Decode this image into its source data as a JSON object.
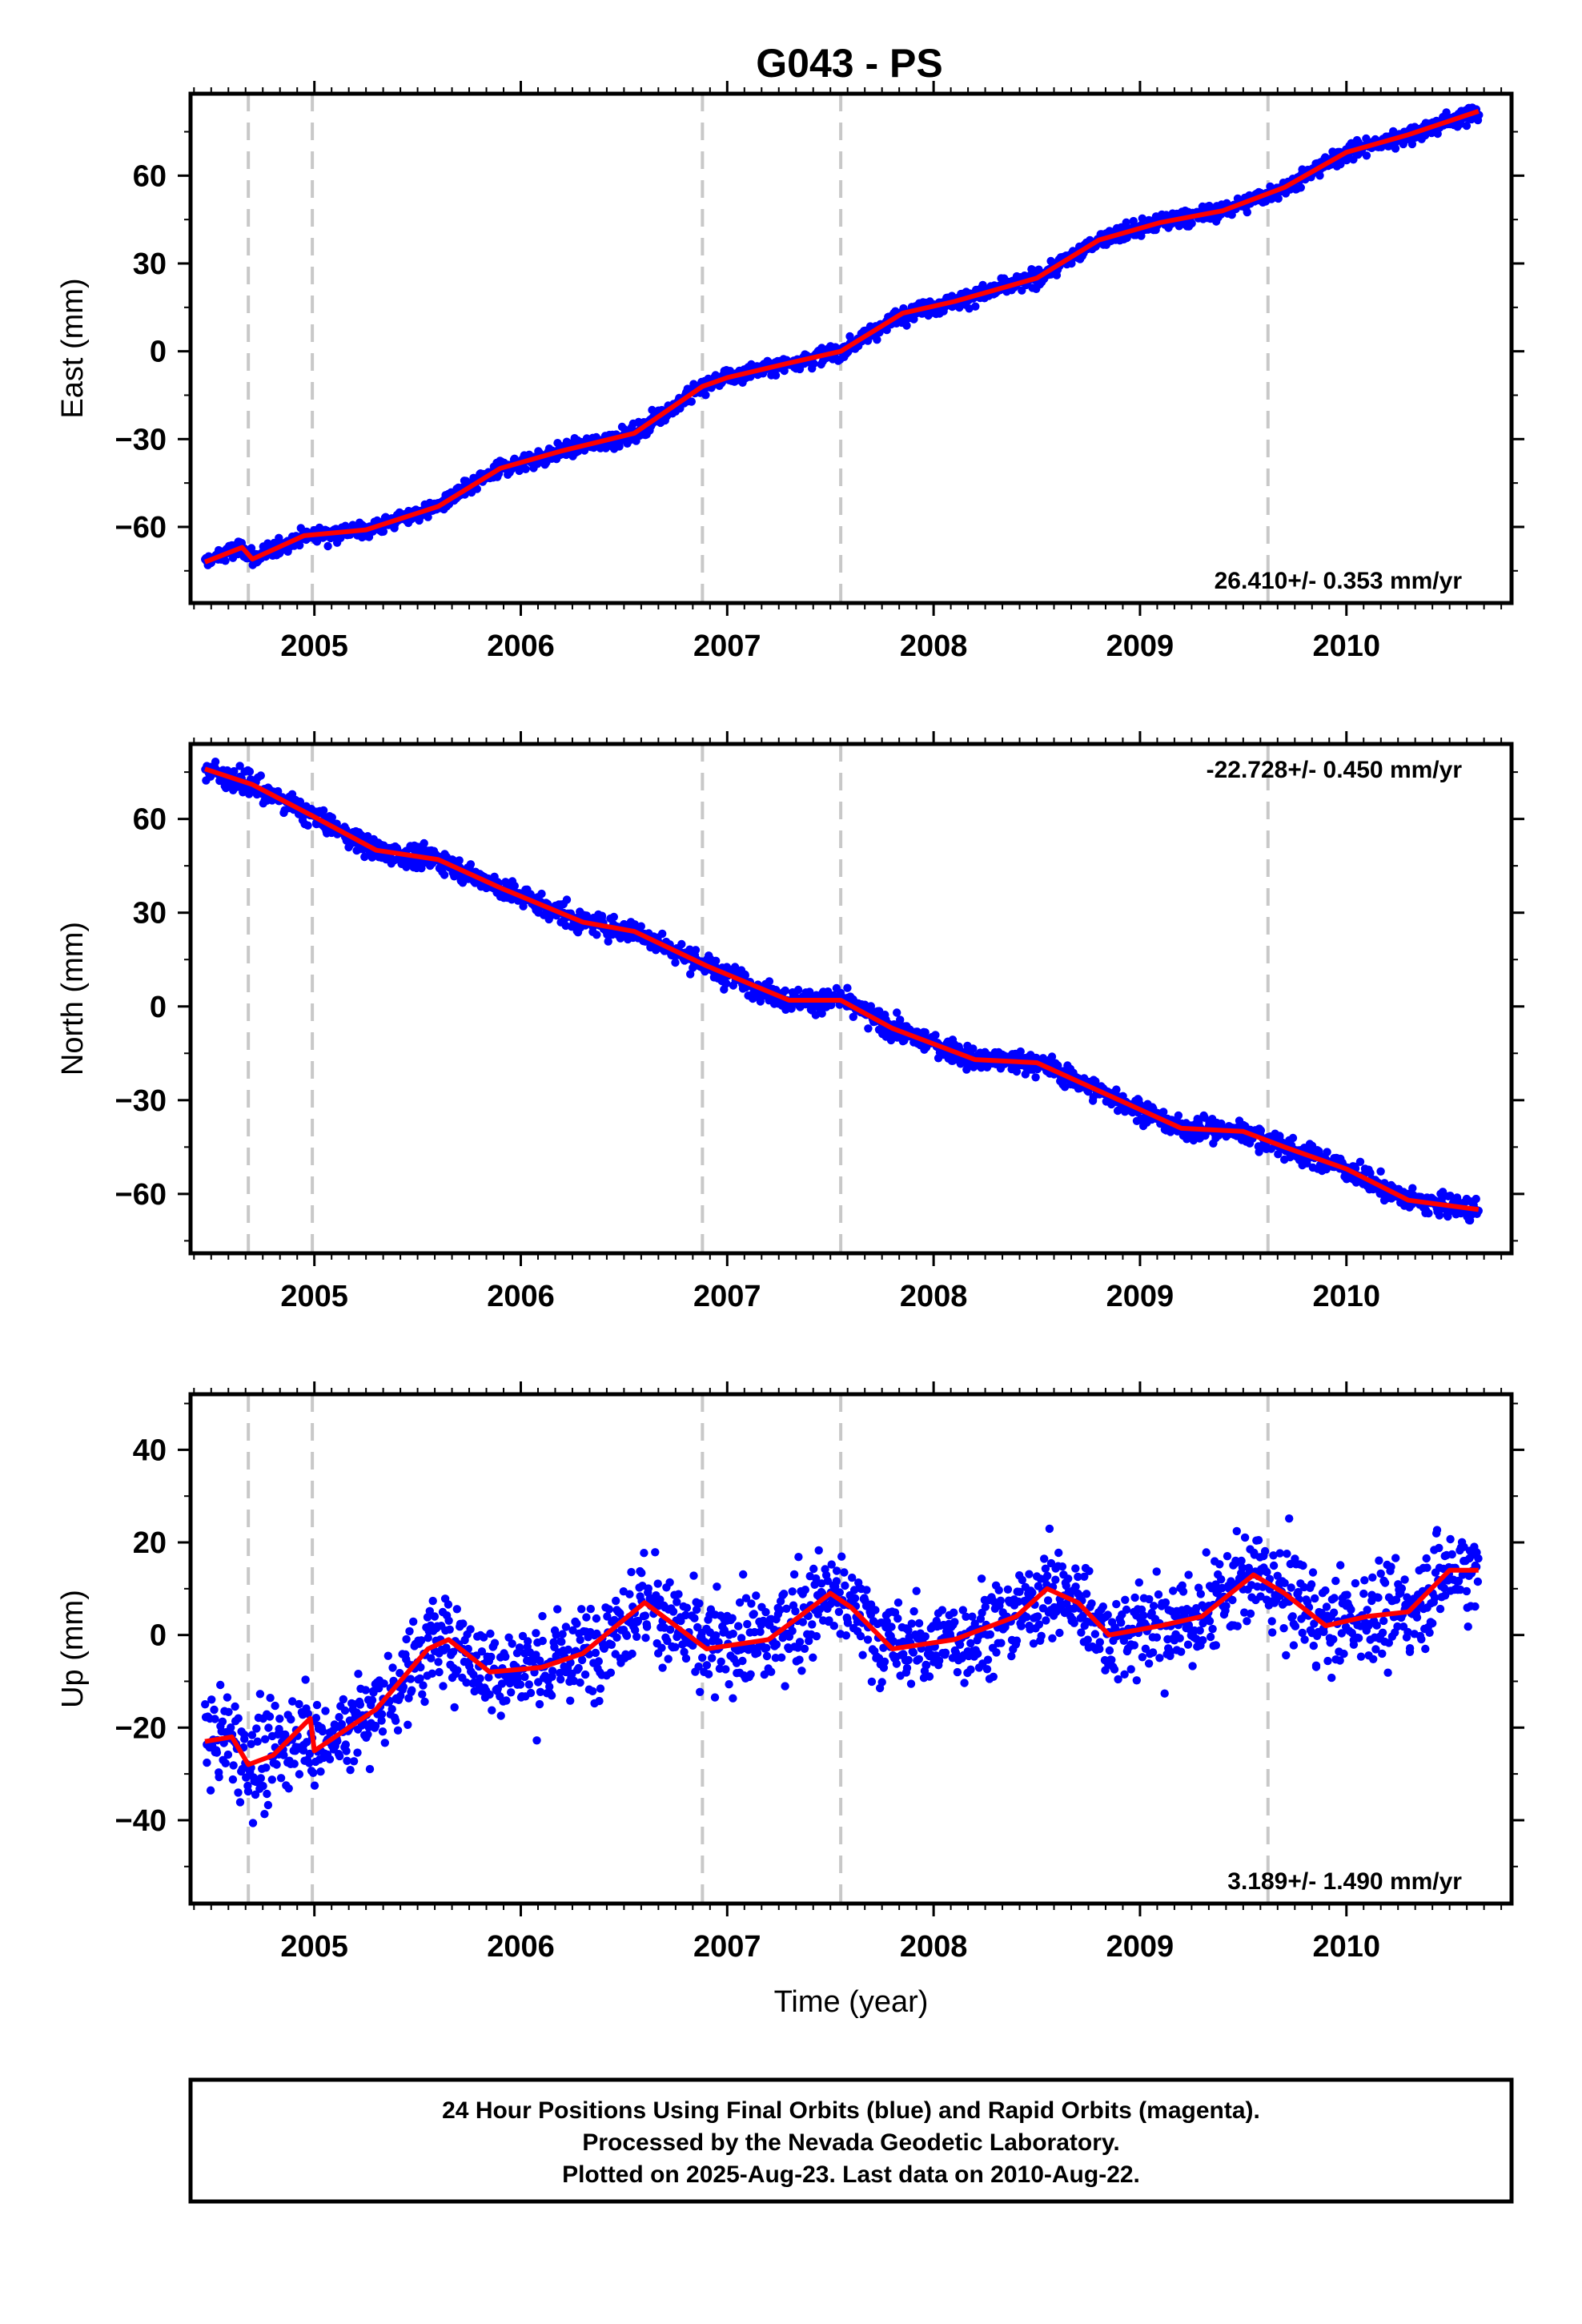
{
  "chart_data": [
    {
      "type": "scatter",
      "title": "G043 - PS",
      "ylabel": "East (mm)",
      "xlabel": "",
      "x_ticks": [
        2005,
        2006,
        2007,
        2008,
        2009,
        2010
      ],
      "y_ticks": [
        -60,
        -30,
        0,
        30,
        60
      ],
      "y_tick_labels": [
        "−60",
        "−30",
        "0",
        "30",
        "60"
      ],
      "xlim": [
        2004.4,
        2010.8
      ],
      "ylim": [
        -86,
        88
      ],
      "rate_text": "26.410+/- 0.353 mm/yr",
      "rate_position": "bottom-right",
      "breaks": [
        2004.68,
        2004.99,
        2006.88,
        2007.55,
        2009.62
      ],
      "series": [
        {
          "color": "#0000ff",
          "marker": "dot",
          "noise": 2.0,
          "x": [
            2004.47,
            2004.65,
            2004.7,
            2004.95,
            2005.25,
            2005.6,
            2005.9,
            2006.2,
            2006.55,
            2006.88,
            2007.0,
            2007.3,
            2007.55,
            2007.85,
            2008.1,
            2008.5,
            2008.8,
            2009.1,
            2009.4,
            2009.7,
            2010.0,
            2010.3,
            2010.64
          ],
          "y": [
            -72,
            -67,
            -71,
            -63,
            -61,
            -53,
            -40,
            -34,
            -28,
            -12,
            -9,
            -4,
            0,
            13,
            17,
            25,
            38,
            44,
            48,
            56,
            68,
            74,
            82
          ]
        },
        {
          "color": "#ff0000",
          "style": "line",
          "x": [
            2004.47,
            2004.65,
            2004.7,
            2004.95,
            2005.25,
            2005.6,
            2005.9,
            2006.2,
            2006.55,
            2006.88,
            2007.0,
            2007.3,
            2007.55,
            2007.85,
            2008.1,
            2008.5,
            2008.8,
            2009.1,
            2009.4,
            2009.7,
            2010.0,
            2010.3,
            2010.64
          ],
          "y": [
            -72,
            -67,
            -71,
            -63,
            -61,
            -53,
            -40,
            -34,
            -28,
            -12,
            -9,
            -4,
            0,
            13,
            17,
            25,
            38,
            44,
            48,
            56,
            68,
            74,
            82
          ]
        }
      ]
    },
    {
      "type": "scatter",
      "title": "",
      "ylabel": "North (mm)",
      "xlabel": "",
      "x_ticks": [
        2005,
        2006,
        2007,
        2008,
        2009,
        2010
      ],
      "y_ticks": [
        -60,
        -30,
        0,
        30,
        60
      ],
      "y_tick_labels": [
        "−60",
        "−30",
        "0",
        "30",
        "60"
      ],
      "xlim": [
        2004.4,
        2010.8
      ],
      "ylim": [
        -79,
        84
      ],
      "rate_text": "-22.728+/- 0.450 mm/yr",
      "rate_position": "top-right",
      "breaks": [
        2004.68,
        2004.99,
        2006.88,
        2007.55,
        2009.62
      ],
      "series": [
        {
          "color": "#0000ff",
          "marker": "dot",
          "noise": 2.5,
          "x": [
            2004.47,
            2004.7,
            2004.99,
            2005.3,
            2005.6,
            2005.9,
            2006.3,
            2006.55,
            2006.9,
            2007.3,
            2007.55,
            2007.8,
            2008.2,
            2008.5,
            2008.8,
            2009.2,
            2009.5,
            2009.7,
            2010.0,
            2010.3,
            2010.64
          ],
          "y": [
            76,
            71,
            61,
            50,
            47,
            38,
            27,
            24,
            13,
            2,
            2,
            -7,
            -17,
            -18,
            -27,
            -39,
            -40,
            -45,
            -52,
            -62,
            -65
          ]
        },
        {
          "color": "#ff0000",
          "style": "line",
          "x": [
            2004.47,
            2004.7,
            2004.99,
            2005.3,
            2005.6,
            2005.9,
            2006.3,
            2006.55,
            2006.9,
            2007.3,
            2007.55,
            2007.8,
            2008.2,
            2008.5,
            2008.8,
            2009.2,
            2009.5,
            2009.7,
            2010.0,
            2010.3,
            2010.64
          ],
          "y": [
            76,
            71,
            61,
            50,
            47,
            38,
            27,
            24,
            13,
            2,
            2,
            -7,
            -17,
            -18,
            -27,
            -39,
            -40,
            -45,
            -52,
            -62,
            -65
          ]
        }
      ]
    },
    {
      "type": "scatter",
      "title": "",
      "ylabel": "Up (mm)",
      "xlabel": "Time (year)",
      "x_ticks": [
        2005,
        2006,
        2007,
        2008,
        2009,
        2010
      ],
      "y_ticks": [
        -40,
        -20,
        0,
        20,
        40
      ],
      "y_tick_labels": [
        "−40",
        "−20",
        "0",
        "20",
        "40"
      ],
      "xlim": [
        2004.4,
        2010.8
      ],
      "ylim": [
        -58,
        52
      ],
      "rate_text": "3.189+/- 1.490 mm/yr",
      "rate_position": "bottom-right",
      "breaks": [
        2004.68,
        2004.99,
        2006.88,
        2007.55,
        2009.62
      ],
      "series": [
        {
          "color": "#0000ff",
          "marker": "dot",
          "noise": 7.0,
          "x": [
            2004.47,
            2004.6,
            2004.68,
            2004.8,
            2004.98,
            2005.0,
            2005.3,
            2005.55,
            2005.65,
            2005.85,
            2006.1,
            2006.3,
            2006.6,
            2006.9,
            2007.2,
            2007.5,
            2007.6,
            2007.8,
            2008.1,
            2008.4,
            2008.55,
            2008.7,
            2008.85,
            2009.1,
            2009.3,
            2009.55,
            2009.7,
            2009.9,
            2010.1,
            2010.3,
            2010.5,
            2010.64
          ],
          "y": [
            -23,
            -22,
            -28,
            -26,
            -18,
            -25,
            -16,
            -3,
            -1,
            -8,
            -7,
            -4,
            7,
            -3,
            -1,
            9,
            6,
            -3,
            -1,
            4,
            10,
            7,
            0,
            2,
            4,
            13,
            9,
            2,
            4,
            5,
            14,
            14
          ]
        },
        {
          "color": "#ff0000",
          "style": "line",
          "x": [
            2004.47,
            2004.6,
            2004.68,
            2004.8,
            2004.98,
            2005.0,
            2005.3,
            2005.55,
            2005.65,
            2005.85,
            2006.1,
            2006.3,
            2006.6,
            2006.9,
            2007.2,
            2007.5,
            2007.6,
            2007.8,
            2008.1,
            2008.4,
            2008.55,
            2008.7,
            2008.85,
            2009.1,
            2009.3,
            2009.55,
            2009.7,
            2009.9,
            2010.1,
            2010.3,
            2010.5,
            2010.64
          ],
          "y": [
            -23,
            -22,
            -28,
            -26,
            -18,
            -25,
            -16,
            -3,
            -1,
            -8,
            -7,
            -4,
            7,
            -3,
            -1,
            9,
            6,
            -3,
            -1,
            4,
            10,
            7,
            0,
            2,
            4,
            13,
            9,
            2,
            4,
            5,
            14,
            14
          ]
        }
      ]
    }
  ],
  "footer": {
    "line1": "24 Hour Positions Using Final Orbits (blue) and Rapid Orbits (magenta).",
    "line2": "Processed by the Nevada Geodetic Laboratory.",
    "line3": "Plotted on 2025-Aug-23. Last data on 2010-Aug-22."
  }
}
